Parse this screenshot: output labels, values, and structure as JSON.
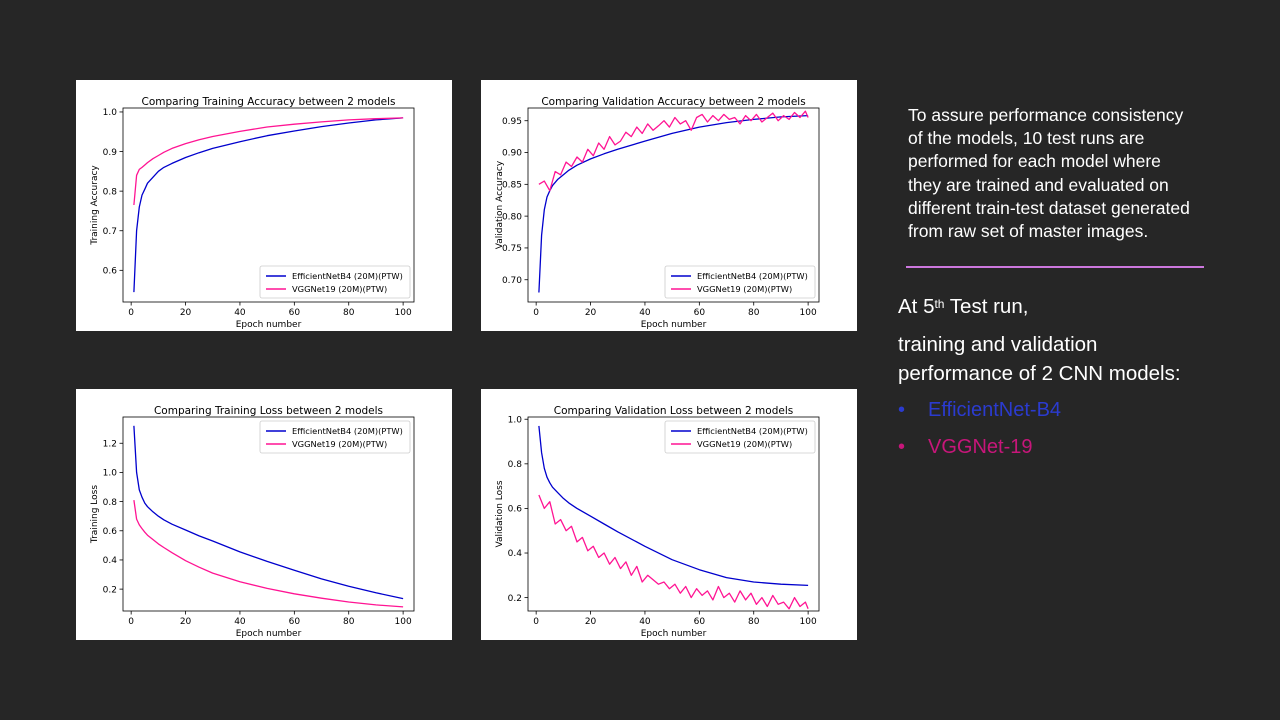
{
  "colors": {
    "background": "#262626",
    "efficientnet": "#0000cd",
    "vggnet": "#ff1493",
    "divider": "#cc77dd",
    "bullet_efficientnet": "#2b3bcf",
    "bullet_vggnet": "#c7167a"
  },
  "side": {
    "paragraph_lines": [
      "To assure performance  consistency",
      "of the models, 10 test runs are",
      "performed  for each model where",
      "they are trained and evaluated  on",
      "different  train-test dataset generated",
      "from raw set of master images."
    ],
    "heading_prefix": "At 5",
    "heading_sup": "th",
    "heading_suffix": " Test run,",
    "subheading_line1": "training and validation",
    "subheading_line2": "performance of 2 CNN models:",
    "bullet_symbol": "•",
    "bullets": [
      "EfficientNet-B4",
      "VGGNet-19"
    ]
  },
  "chart_data": [
    {
      "id": "train-acc",
      "type": "line",
      "title": "Comparing Training Accuracy between 2 models",
      "xlabel": "Epoch number",
      "ylabel": "Training Accuracy",
      "xlim": [
        -3,
        104
      ],
      "ylim": [
        0.52,
        1.01
      ],
      "xticks": [
        0,
        20,
        40,
        60,
        80,
        100
      ],
      "yticks": [
        0.6,
        0.7,
        0.8,
        0.9,
        1.0
      ],
      "ytick_labels": [
        "0.6",
        "0.7",
        "0.8",
        "0.9",
        "1.0"
      ],
      "legend_position": "lower right",
      "series": [
        {
          "name": "EfficientNetB4 (20M)(PTW)",
          "color": "#0000cd",
          "x": [
            1,
            2,
            3,
            4,
            5,
            6,
            8,
            10,
            12,
            15,
            20,
            25,
            30,
            40,
            50,
            60,
            70,
            80,
            90,
            100
          ],
          "y": [
            0.545,
            0.7,
            0.76,
            0.79,
            0.805,
            0.82,
            0.835,
            0.85,
            0.86,
            0.87,
            0.885,
            0.897,
            0.908,
            0.925,
            0.94,
            0.952,
            0.963,
            0.972,
            0.98,
            0.985
          ]
        },
        {
          "name": "VGGNet19 (20M)(PTW)",
          "color": "#ff1493",
          "x": [
            1,
            2,
            3,
            4,
            5,
            6,
            8,
            10,
            12,
            15,
            20,
            25,
            30,
            40,
            50,
            60,
            70,
            80,
            90,
            100
          ],
          "y": [
            0.765,
            0.84,
            0.855,
            0.86,
            0.866,
            0.872,
            0.882,
            0.89,
            0.898,
            0.908,
            0.92,
            0.93,
            0.938,
            0.951,
            0.962,
            0.969,
            0.975,
            0.98,
            0.983,
            0.985
          ]
        }
      ]
    },
    {
      "id": "val-acc",
      "type": "line",
      "title": "Comparing Validation Accuracy between 2 models",
      "xlabel": "Epoch number",
      "ylabel": "Validation Accuracy",
      "xlim": [
        -3,
        104
      ],
      "ylim": [
        0.665,
        0.97
      ],
      "xticks": [
        0,
        20,
        40,
        60,
        80,
        100
      ],
      "yticks": [
        0.7,
        0.75,
        0.8,
        0.85,
        0.9,
        0.95
      ],
      "ytick_labels": [
        "0.70",
        "0.75",
        "0.80",
        "0.85",
        "0.90",
        "0.95"
      ],
      "legend_position": "lower right",
      "series": [
        {
          "name": "EfficientNetB4 (20M)(PTW)",
          "color": "#0000cd",
          "x": [
            1,
            2,
            3,
            4,
            5,
            6,
            8,
            10,
            12,
            15,
            20,
            25,
            30,
            40,
            50,
            60,
            70,
            80,
            90,
            100
          ],
          "y": [
            0.68,
            0.77,
            0.81,
            0.83,
            0.84,
            0.848,
            0.858,
            0.865,
            0.872,
            0.88,
            0.89,
            0.898,
            0.905,
            0.918,
            0.93,
            0.94,
            0.947,
            0.952,
            0.956,
            0.958
          ]
        },
        {
          "name": "VGGNet19 (20M)(PTW)",
          "color": "#ff1493",
          "x": [
            1,
            3,
            5,
            7,
            9,
            11,
            13,
            15,
            17,
            19,
            21,
            23,
            25,
            27,
            29,
            31,
            33,
            35,
            37,
            39,
            41,
            43,
            45,
            47,
            49,
            51,
            53,
            55,
            57,
            59,
            61,
            63,
            65,
            67,
            69,
            71,
            73,
            75,
            77,
            79,
            81,
            83,
            85,
            87,
            89,
            91,
            93,
            95,
            97,
            99,
            100
          ],
          "y": [
            0.85,
            0.855,
            0.84,
            0.87,
            0.865,
            0.885,
            0.878,
            0.893,
            0.885,
            0.905,
            0.895,
            0.915,
            0.905,
            0.925,
            0.912,
            0.918,
            0.932,
            0.925,
            0.94,
            0.93,
            0.945,
            0.935,
            0.942,
            0.95,
            0.94,
            0.955,
            0.945,
            0.95,
            0.935,
            0.955,
            0.96,
            0.948,
            0.958,
            0.95,
            0.96,
            0.952,
            0.955,
            0.945,
            0.958,
            0.95,
            0.96,
            0.948,
            0.955,
            0.962,
            0.95,
            0.958,
            0.952,
            0.963,
            0.955,
            0.965,
            0.955
          ]
        }
      ]
    },
    {
      "id": "train-loss",
      "type": "line",
      "title": "Comparing Training Loss between 2 models",
      "xlabel": "Epoch number",
      "ylabel": "Training Loss",
      "xlim": [
        -3,
        104
      ],
      "ylim": [
        0.05,
        1.38
      ],
      "xticks": [
        0,
        20,
        40,
        60,
        80,
        100
      ],
      "yticks": [
        0.2,
        0.4,
        0.6,
        0.8,
        1.0,
        1.2
      ],
      "ytick_labels": [
        "0.2",
        "0.4",
        "0.6",
        "0.8",
        "1.0",
        "1.2"
      ],
      "legend_position": "upper right",
      "series": [
        {
          "name": "EfficientNetB4 (20M)(PTW)",
          "color": "#0000cd",
          "x": [
            1,
            2,
            3,
            4,
            5,
            6,
            8,
            10,
            12,
            15,
            20,
            25,
            30,
            40,
            50,
            60,
            70,
            80,
            90,
            100
          ],
          "y": [
            1.32,
            1.0,
            0.88,
            0.83,
            0.79,
            0.765,
            0.73,
            0.7,
            0.675,
            0.645,
            0.605,
            0.565,
            0.53,
            0.455,
            0.39,
            0.33,
            0.27,
            0.22,
            0.175,
            0.135
          ]
        },
        {
          "name": "VGGNet19 (20M)(PTW)",
          "color": "#ff1493",
          "x": [
            1,
            2,
            3,
            4,
            5,
            6,
            8,
            10,
            12,
            15,
            20,
            25,
            30,
            40,
            50,
            60,
            70,
            80,
            90,
            100
          ],
          "y": [
            0.81,
            0.68,
            0.64,
            0.615,
            0.59,
            0.57,
            0.54,
            0.51,
            0.485,
            0.45,
            0.395,
            0.35,
            0.31,
            0.25,
            0.205,
            0.168,
            0.138,
            0.112,
            0.092,
            0.078
          ]
        }
      ]
    },
    {
      "id": "val-loss",
      "type": "line",
      "title": "Comparing Validation Loss between 2 models",
      "xlabel": "Epoch number",
      "ylabel": "Validation Loss",
      "xlim": [
        -3,
        104
      ],
      "ylim": [
        0.14,
        1.01
      ],
      "xticks": [
        0,
        20,
        40,
        60,
        80,
        100
      ],
      "yticks": [
        0.2,
        0.4,
        0.6,
        0.8,
        1.0
      ],
      "ytick_labels": [
        "0.2",
        "0.4",
        "0.6",
        "0.8",
        "1.0"
      ],
      "legend_position": "upper right",
      "series": [
        {
          "name": "EfficientNetB4 (20M)(PTW)",
          "color": "#0000cd",
          "x": [
            1,
            2,
            3,
            4,
            5,
            6,
            8,
            10,
            12,
            15,
            20,
            25,
            30,
            40,
            50,
            60,
            70,
            80,
            90,
            100
          ],
          "y": [
            0.97,
            0.85,
            0.78,
            0.74,
            0.715,
            0.695,
            0.67,
            0.645,
            0.625,
            0.6,
            0.565,
            0.53,
            0.495,
            0.43,
            0.37,
            0.325,
            0.29,
            0.27,
            0.26,
            0.255
          ]
        },
        {
          "name": "VGGNet19 (20M)(PTW)",
          "color": "#ff1493",
          "x": [
            1,
            3,
            5,
            7,
            9,
            11,
            13,
            15,
            17,
            19,
            21,
            23,
            25,
            27,
            29,
            31,
            33,
            35,
            37,
            39,
            41,
            43,
            45,
            47,
            49,
            51,
            53,
            55,
            57,
            59,
            61,
            63,
            65,
            67,
            69,
            71,
            73,
            75,
            77,
            79,
            81,
            83,
            85,
            87,
            89,
            91,
            93,
            95,
            97,
            99,
            100
          ],
          "y": [
            0.66,
            0.6,
            0.63,
            0.53,
            0.55,
            0.5,
            0.52,
            0.45,
            0.47,
            0.41,
            0.43,
            0.38,
            0.4,
            0.35,
            0.38,
            0.33,
            0.36,
            0.3,
            0.34,
            0.27,
            0.3,
            0.28,
            0.26,
            0.27,
            0.24,
            0.26,
            0.22,
            0.25,
            0.2,
            0.24,
            0.21,
            0.23,
            0.19,
            0.25,
            0.2,
            0.22,
            0.18,
            0.23,
            0.19,
            0.22,
            0.17,
            0.2,
            0.16,
            0.21,
            0.17,
            0.18,
            0.15,
            0.2,
            0.16,
            0.18,
            0.15
          ]
        }
      ]
    }
  ]
}
